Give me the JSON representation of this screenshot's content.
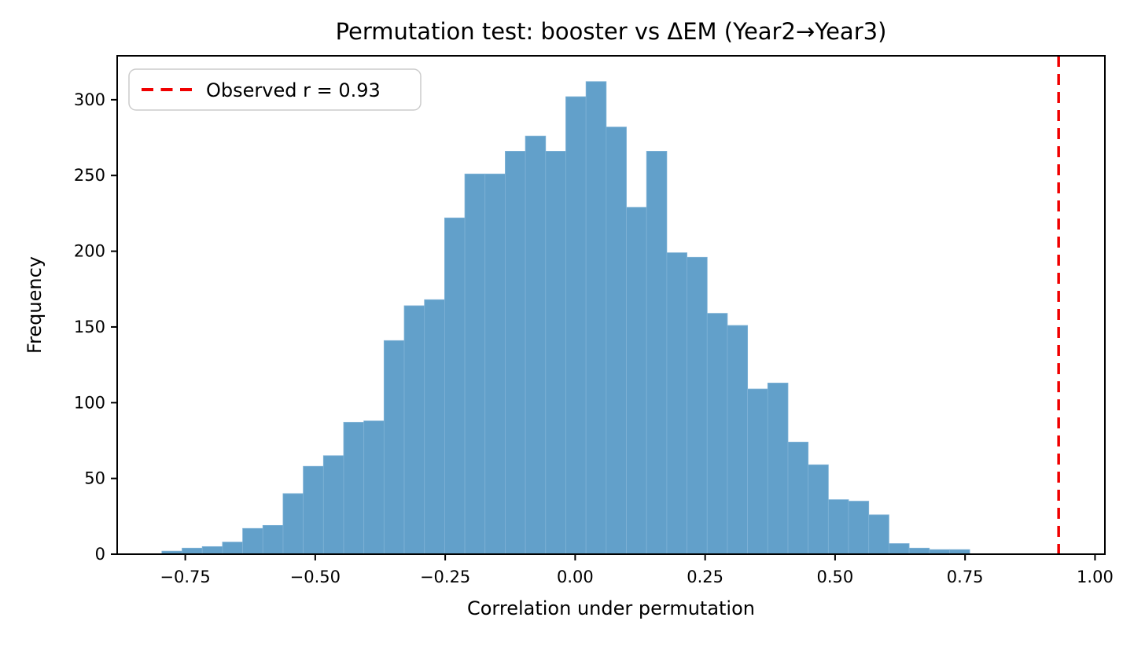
{
  "chart_data": {
    "type": "bar",
    "subtype": "histogram",
    "title": "Permutation test: booster vs ΔEM (Year2→Year3)",
    "xlabel": "Correlation under permutation",
    "ylabel": "Frequency",
    "legend_label": "Observed r = 0.93",
    "legend_position": "upper left",
    "observed_r": 0.93,
    "bin_start": -0.795,
    "bin_width": 0.03885,
    "counts": [
      2,
      4,
      5,
      8,
      17,
      19,
      40,
      58,
      65,
      87,
      88,
      141,
      164,
      168,
      222,
      251,
      251,
      266,
      276,
      266,
      302,
      312,
      282,
      229,
      266,
      199,
      196,
      159,
      151,
      109,
      113,
      74,
      59,
      36,
      35,
      26,
      7,
      4,
      3,
      3
    ],
    "xlim": [
      -0.881,
      1.019
    ],
    "ylim": [
      0,
      329
    ],
    "x_ticks": [
      {
        "value": -0.75,
        "label": "−0.75"
      },
      {
        "value": -0.5,
        "label": "−0.50"
      },
      {
        "value": -0.25,
        "label": "−0.25"
      },
      {
        "value": 0.0,
        "label": "0.00"
      },
      {
        "value": 0.25,
        "label": "0.25"
      },
      {
        "value": 0.5,
        "label": "0.50"
      },
      {
        "value": 0.75,
        "label": "0.75"
      },
      {
        "value": 1.0,
        "label": "1.00"
      }
    ],
    "y_ticks": [
      {
        "value": 0,
        "label": "0"
      },
      {
        "value": 50,
        "label": "50"
      },
      {
        "value": 100,
        "label": "100"
      },
      {
        "value": 150,
        "label": "150"
      },
      {
        "value": 200,
        "label": "200"
      },
      {
        "value": 250,
        "label": "250"
      },
      {
        "value": 300,
        "label": "300"
      }
    ],
    "grid": false,
    "colors": {
      "bar_fill": "#62a0ca",
      "bar_edge": "#7fb2d6",
      "observed_line": "#f00000",
      "axis": "#000000",
      "legend_border": "#cccccc",
      "legend_bg": "#ffffff",
      "background": "#ffffff"
    }
  }
}
